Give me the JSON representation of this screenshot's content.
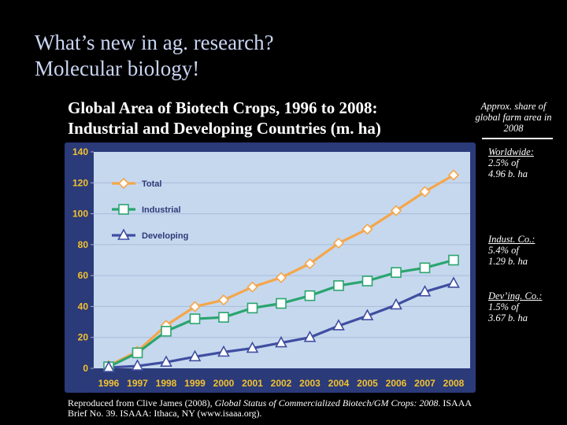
{
  "slide": {
    "title_line1": "What’s new in ag. research?",
    "title_line2": "Molecular biology!",
    "chart_title_line1": "Global Area of Biotech Crops, 1996 to 2008:",
    "chart_title_line2": "Industrial and Developing Countries (m. ha)"
  },
  "side_notes": {
    "header": "Approx. share of global farm area in 2008",
    "worldwide_label": "Worldwide:",
    "worldwide_value_1": "2.5% of",
    "worldwide_value_2": "4.96 b. ha",
    "industrial_label": "Indust. Co.:",
    "industrial_value_1": "5.4% of",
    "industrial_value_2": "1.29 b. ha",
    "developing_label": "Dev’ing. Co.:",
    "developing_value_1": "1.5% of",
    "developing_value_2": "3.67 b. ha"
  },
  "citation": {
    "prefix": "Reproduced from Clive James (2008), ",
    "italic": "Global Status of Commercialized Biotech/GM Crops: 2008",
    "suffix": ". ISAAA Brief No. 39. ISAAA: Ithaca, NY (www.isaaa.org)."
  },
  "colors": {
    "frame": "#2b3a78",
    "plot_bg": "#c6d8ee",
    "total": "#f5a64a",
    "industrial": "#2aa56f",
    "developing": "#3f4ea0",
    "tick_text": "#f2c230"
  },
  "chart_data": {
    "type": "line",
    "title": "Global Area of Biotech Crops, 1996 to 2008: Industrial and Developing Countries (m. ha)",
    "xlabel": "",
    "ylabel": "",
    "categories": [
      "1996",
      "1997",
      "1998",
      "1999",
      "2000",
      "2001",
      "2002",
      "2003",
      "2004",
      "2005",
      "2006",
      "2007",
      "2008"
    ],
    "ylim": [
      0,
      140
    ],
    "yticks": [
      0,
      20,
      40,
      60,
      80,
      100,
      120,
      140
    ],
    "legend_position": "top-left",
    "series": [
      {
        "name": "Total",
        "marker": "diamond",
        "color": "#f5a64a",
        "values": [
          1.7,
          11.0,
          27.8,
          39.9,
          44.2,
          52.6,
          58.7,
          67.7,
          81.0,
          90.0,
          102.0,
          114.3,
          125.0
        ]
      },
      {
        "name": "Industrial",
        "marker": "square",
        "color": "#2aa56f",
        "values": [
          1.0,
          10.0,
          24.0,
          32.0,
          33.0,
          39.0,
          42.0,
          47.0,
          53.5,
          56.5,
          62.0,
          65.0,
          70.0
        ]
      },
      {
        "name": "Developing",
        "marker": "triangle",
        "color": "#3f4ea0",
        "values": [
          0.5,
          1.5,
          4.0,
          7.5,
          10.5,
          13.0,
          16.5,
          20.0,
          27.5,
          34.0,
          41.0,
          49.5,
          55.0
        ]
      }
    ]
  }
}
